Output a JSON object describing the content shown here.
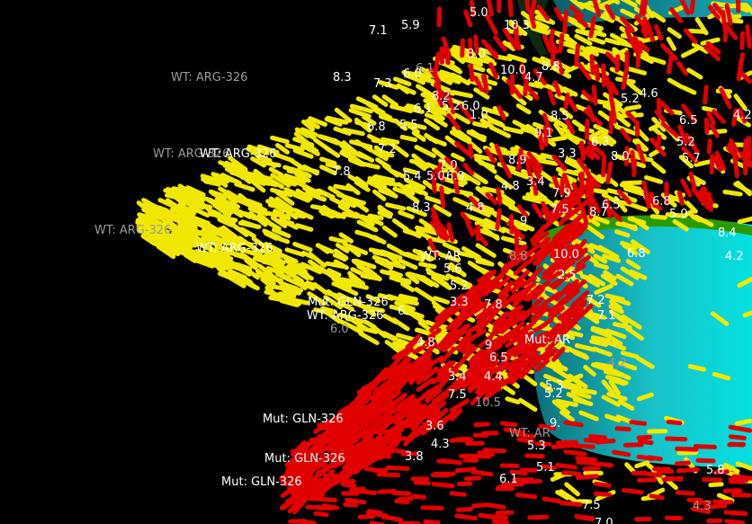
{
  "colors": {
    "background": "#000000",
    "wt_sticks": "#f0e800",
    "mut_sticks": "#e00000",
    "ring_cyan": "#16b8c0",
    "ring_rim": "#2aa000",
    "label_white": "#ffffff",
    "label_grey": "#9a9a9a"
  },
  "residue_labels": [
    {
      "text": "WT: ARG-326",
      "tone": "grey"
    },
    {
      "text": "WT: ARG-326",
      "tone": "grey"
    },
    {
      "text": "WT: ARG-326",
      "tone": "white"
    },
    {
      "text": "WT: ARG-326",
      "tone": "grey"
    },
    {
      "text": "WT: ARG-326",
      "tone": "white"
    },
    {
      "text": "Mut: GLN-326",
      "tone": "white"
    },
    {
      "text": "WT: ARG-326",
      "tone": "white"
    },
    {
      "text": "Mut: GLN-326",
      "tone": "white"
    },
    {
      "text": "Mut: GLN-326",
      "tone": "white"
    },
    {
      "text": "Mut: GLN-326",
      "tone": "white"
    },
    {
      "text": "WT: AR",
      "tone": "white"
    },
    {
      "text": "Mut: AR",
      "tone": "white"
    },
    {
      "text": "WT: AR",
      "tone": "grey"
    }
  ],
  "distance_labels": [
    {
      "text": "5.0",
      "tone": "white"
    },
    {
      "text": "10.3",
      "tone": "white"
    },
    {
      "text": "7.1",
      "tone": "white"
    },
    {
      "text": "5.9",
      "tone": "white"
    },
    {
      "text": "8.0",
      "tone": "white"
    },
    {
      "text": "6.1",
      "tone": "grey"
    },
    {
      "text": "10.0",
      "tone": "white"
    },
    {
      "text": "8.8",
      "tone": "white"
    },
    {
      "text": "8.3",
      "tone": "white"
    },
    {
      "text": "7.3",
      "tone": "white"
    },
    {
      "text": "6.0",
      "tone": "white"
    },
    {
      "text": "4.7",
      "tone": "white"
    },
    {
      "text": "4.6",
      "tone": "white"
    },
    {
      "text": "5.2",
      "tone": "white"
    },
    {
      "text": "8.2",
      "tone": "white"
    },
    {
      "text": "5.2",
      "tone": "white"
    },
    {
      "text": "6.0",
      "tone": "white"
    },
    {
      "text": "6.1",
      "tone": "white"
    },
    {
      "text": "1.0",
      "tone": "white"
    },
    {
      "text": "8.5",
      "tone": "white"
    },
    {
      "text": "6.5",
      "tone": "white"
    },
    {
      "text": "4.2",
      "tone": "white"
    },
    {
      "text": "6.8",
      "tone": "white"
    },
    {
      "text": "5.5",
      "tone": "white"
    },
    {
      "text": "9.1",
      "tone": "white"
    },
    {
      "text": "6.3",
      "tone": "white"
    },
    {
      "text": "5.2",
      "tone": "white"
    },
    {
      "text": "7.2",
      "tone": "white"
    },
    {
      "text": "5.0",
      "tone": "white"
    },
    {
      "text": "8.0",
      "tone": "white"
    },
    {
      "text": "5.7",
      "tone": "white"
    },
    {
      "text": "7.8",
      "tone": "white"
    },
    {
      "text": "5.4",
      "tone": "white"
    },
    {
      "text": "6.9",
      "tone": "white"
    },
    {
      "text": "7.0",
      "tone": "white"
    },
    {
      "text": "8.9",
      "tone": "white"
    },
    {
      "text": "3.3",
      "tone": "white"
    },
    {
      "text": "3.4",
      "tone": "white"
    },
    {
      "text": "4.8",
      "tone": "white"
    },
    {
      "text": "7.9",
      "tone": "white"
    },
    {
      "text": "6.8",
      "tone": "white"
    },
    {
      "text": "8.3",
      "tone": "white"
    },
    {
      "text": "6.5",
      "tone": "white"
    },
    {
      "text": "4.8",
      "tone": "white"
    },
    {
      "text": "7.5",
      "tone": "white"
    },
    {
      "text": "8.7",
      "tone": "white"
    },
    {
      "text": "5.0",
      "tone": "white"
    },
    {
      "text": "8.4",
      "tone": "white"
    },
    {
      "text": "6.8",
      "tone": "white"
    },
    {
      "text": "9",
      "tone": "white"
    },
    {
      "text": "4.2",
      "tone": "white"
    },
    {
      "text": "8.8",
      "tone": "grey"
    },
    {
      "text": "10.0",
      "tone": "white"
    },
    {
      "text": "2.5",
      "tone": "white"
    },
    {
      "text": "5.6",
      "tone": "white"
    },
    {
      "text": "5.2",
      "tone": "white"
    },
    {
      "text": "3.3",
      "tone": "white"
    },
    {
      "text": "7.8",
      "tone": "white"
    },
    {
      "text": "6.",
      "tone": "white"
    },
    {
      "text": "7.2",
      "tone": "white"
    },
    {
      "text": "7.1",
      "tone": "white"
    },
    {
      "text": "6.0",
      "tone": "grey"
    },
    {
      "text": "4.8",
      "tone": "white"
    },
    {
      "text": "9",
      "tone": "white"
    },
    {
      "text": "6.5",
      "tone": "white"
    },
    {
      "text": "3.4",
      "tone": "white"
    },
    {
      "text": "4.4",
      "tone": "white"
    },
    {
      "text": "4.2",
      "tone": "grey"
    },
    {
      "text": "5.3",
      "tone": "white"
    },
    {
      "text": "5.2",
      "tone": "white"
    },
    {
      "text": "7.5",
      "tone": "white"
    },
    {
      "text": "10.5",
      "tone": "grey"
    },
    {
      "text": "9.",
      "tone": "white"
    },
    {
      "text": "3.6",
      "tone": "white"
    },
    {
      "text": "4.3",
      "tone": "white"
    },
    {
      "text": "5.3",
      "tone": "white"
    },
    {
      "text": "3.8",
      "tone": "white"
    },
    {
      "text": "5.1",
      "tone": "white"
    },
    {
      "text": "6.1",
      "tone": "white"
    },
    {
      "text": "7.5",
      "tone": "white"
    },
    {
      "text": "4.3",
      "tone": "grey"
    },
    {
      "text": "7.0",
      "tone": "white"
    },
    {
      "text": "5.8",
      "tone": "white"
    }
  ]
}
